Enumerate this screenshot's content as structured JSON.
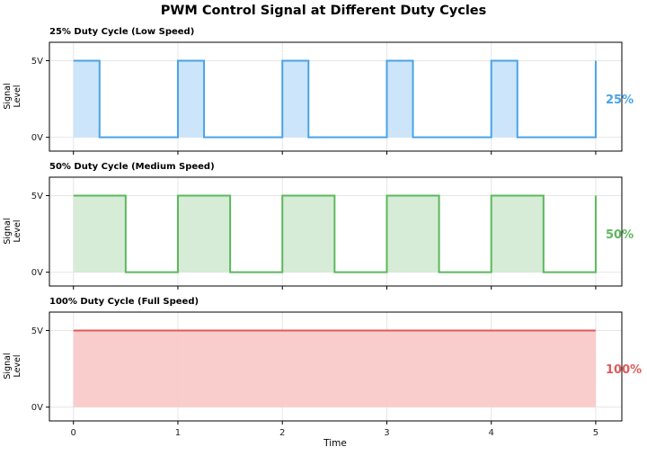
{
  "title": "PWM Control Signal at Different Duty Cycles",
  "xlabel": "Time",
  "ylabel": "Signal\nLevel",
  "colors": {
    "low": "#4aa3e8",
    "medium": "#5cb85c",
    "full": "#e05a5a"
  },
  "chart_data": [
    {
      "type": "area",
      "title": "25% Duty Cycle (Low Speed)",
      "duty_label": "25%",
      "duty_cycle": 0.25,
      "period": 1,
      "color": "#4aa3e8",
      "fill": "#c6e2f9",
      "xlim": [
        -0.23,
        5.25
      ],
      "ylim": [
        -0.9,
        6.2
      ],
      "x_ticks": [
        0,
        1,
        2,
        3,
        4,
        5
      ],
      "y_ticks": [
        0,
        5
      ],
      "y_tick_labels": [
        "0V",
        "5V"
      ],
      "x": [
        0,
        0.25,
        0.25,
        1,
        1,
        1.25,
        1.25,
        2,
        2,
        2.25,
        2.25,
        3,
        3,
        3.25,
        3.25,
        4,
        4,
        4.25,
        4.25,
        5,
        5
      ],
      "y": [
        5,
        5,
        0,
        0,
        5,
        5,
        0,
        0,
        5,
        5,
        0,
        0,
        5,
        5,
        0,
        0,
        5,
        5,
        0,
        0,
        5
      ]
    },
    {
      "type": "area",
      "title": "50% Duty Cycle (Medium Speed)",
      "duty_label": "50%",
      "duty_cycle": 0.5,
      "period": 1,
      "color": "#5cb85c",
      "fill": "#d2ead2",
      "xlim": [
        -0.23,
        5.25
      ],
      "ylim": [
        -0.9,
        6.2
      ],
      "x_ticks": [
        0,
        1,
        2,
        3,
        4,
        5
      ],
      "y_ticks": [
        0,
        5
      ],
      "y_tick_labels": [
        "0V",
        "5V"
      ],
      "x": [
        0,
        0.5,
        0.5,
        1,
        1,
        1.5,
        1.5,
        2,
        2,
        2.5,
        2.5,
        3,
        3,
        3.5,
        3.5,
        4,
        4,
        4.5,
        4.5,
        5,
        5
      ],
      "y": [
        5,
        5,
        0,
        0,
        5,
        5,
        0,
        0,
        5,
        5,
        0,
        0,
        5,
        5,
        0,
        0,
        5,
        5,
        0,
        0,
        5
      ]
    },
    {
      "type": "area",
      "title": "100% Duty Cycle (Full Speed)",
      "duty_label": "100%",
      "duty_cycle": 1.0,
      "period": 1,
      "color": "#e05a5a",
      "fill": "#f9c8c8",
      "xlim": [
        -0.23,
        5.25
      ],
      "ylim": [
        -0.9,
        6.2
      ],
      "x_ticks": [
        0,
        1,
        2,
        3,
        4,
        5
      ],
      "x_tick_labels": [
        "0",
        "1",
        "2",
        "3",
        "4",
        "5"
      ],
      "y_ticks": [
        0,
        5
      ],
      "y_tick_labels": [
        "0V",
        "5V"
      ],
      "x": [
        0,
        5
      ],
      "y": [
        5,
        5
      ]
    }
  ]
}
